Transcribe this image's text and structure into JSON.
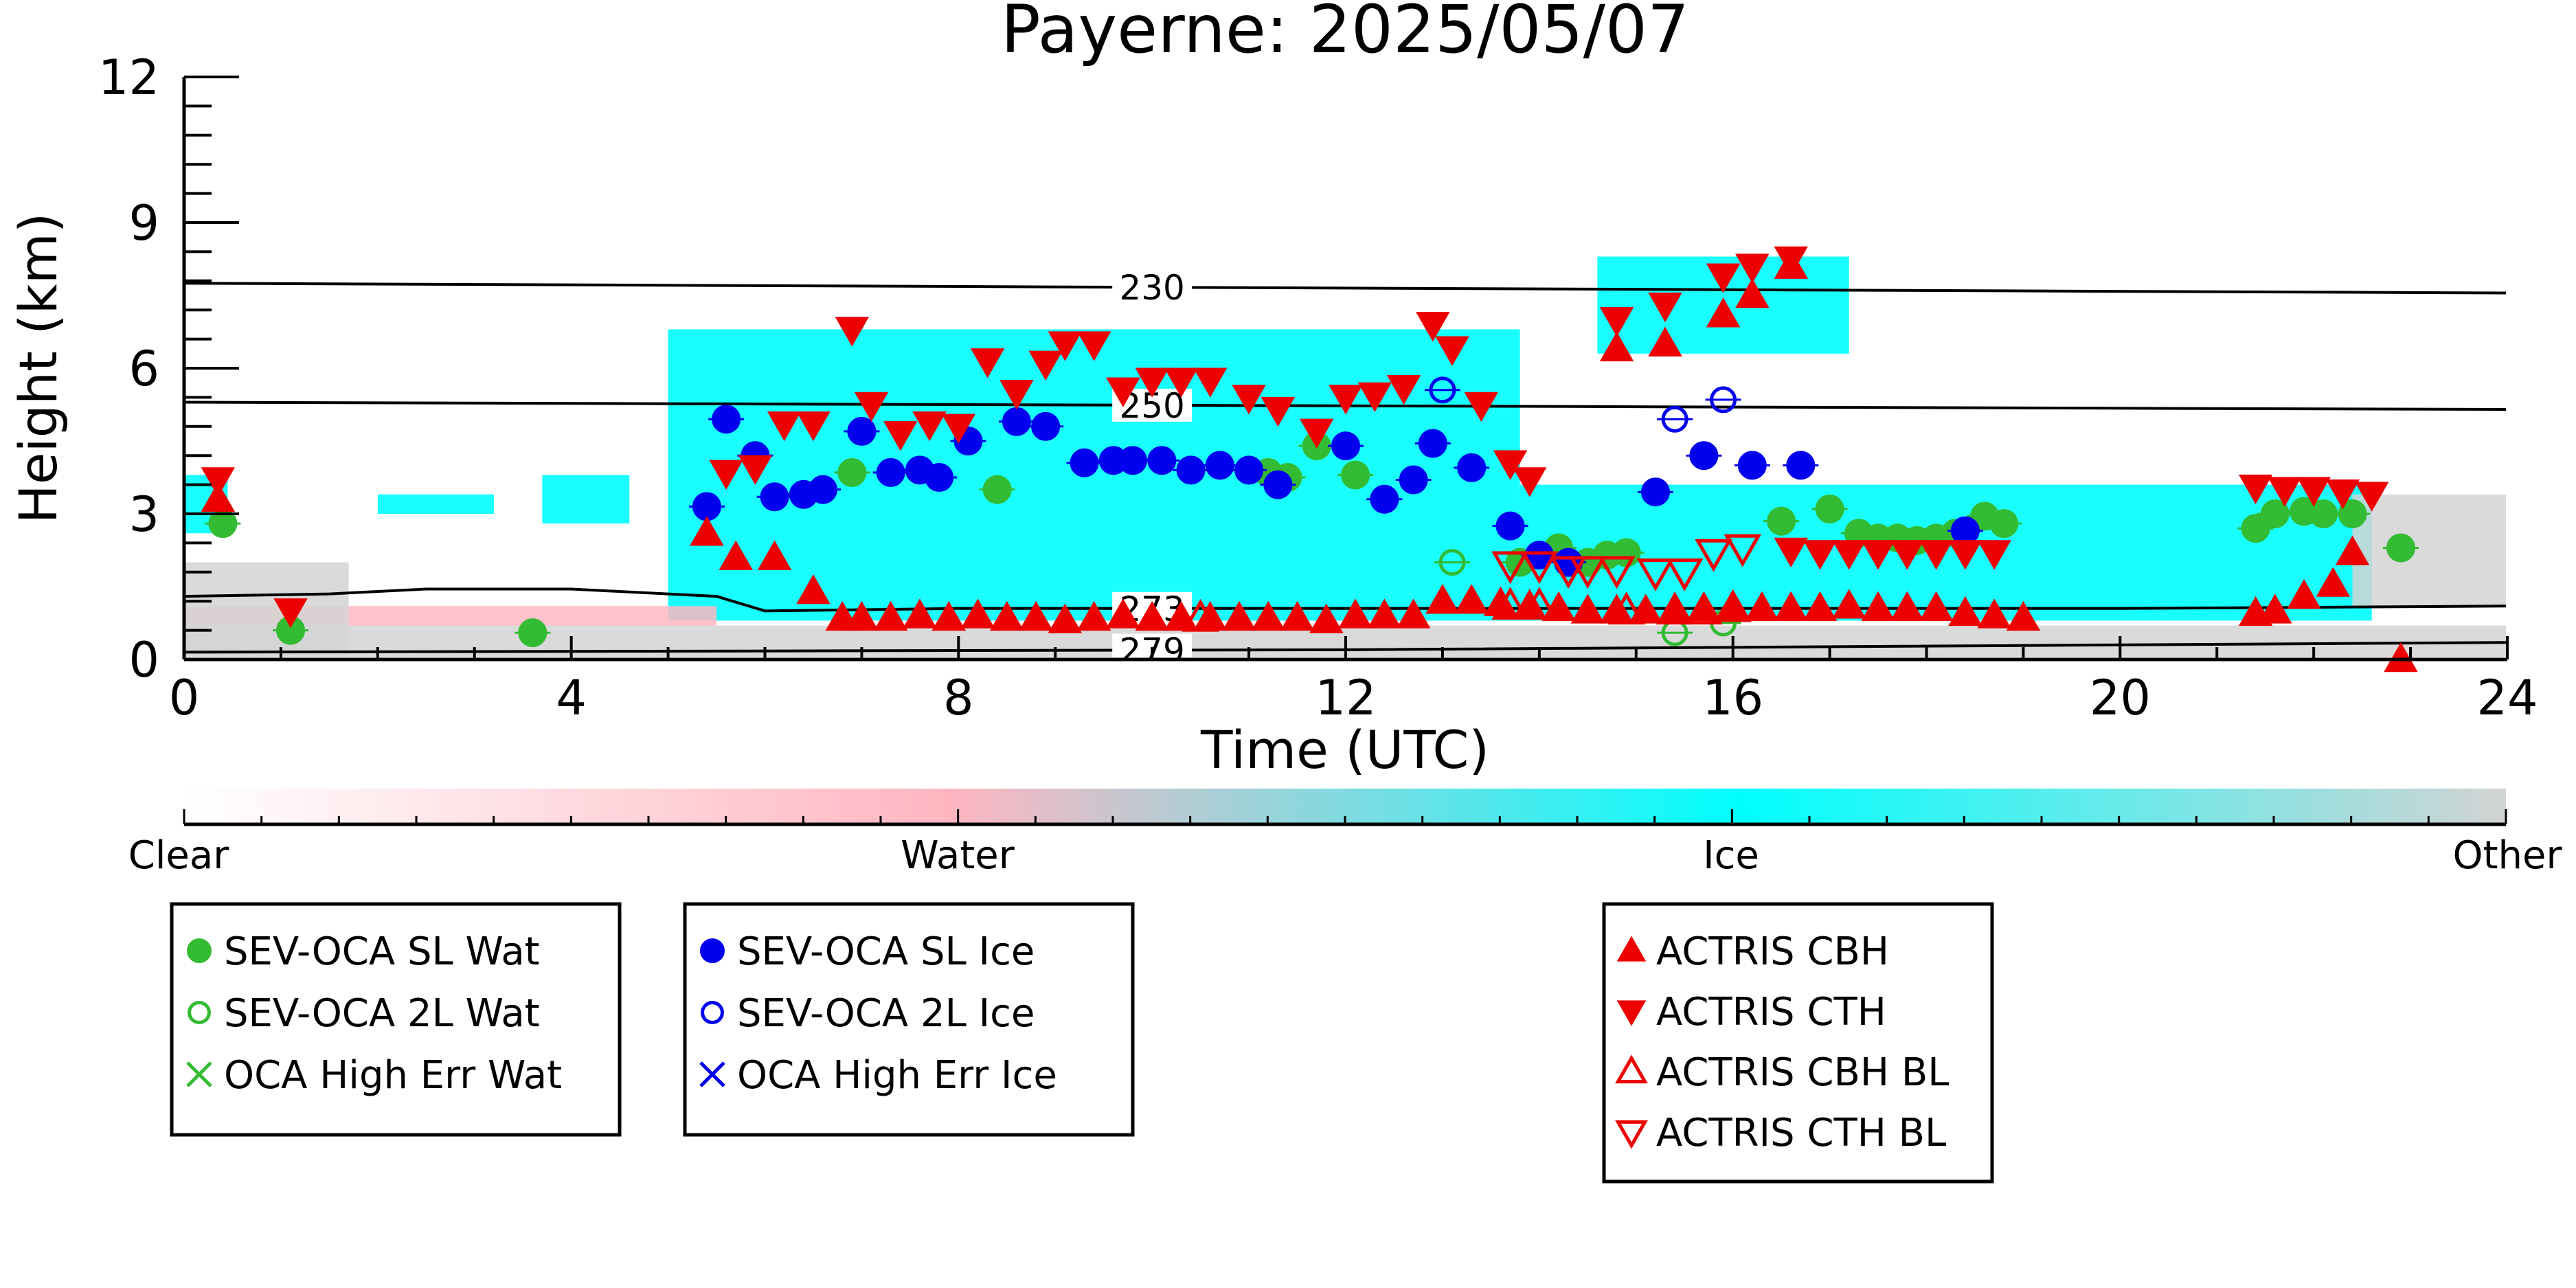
{
  "chart_data": {
    "type": "scatter",
    "title": "Payerne: 2025/05/07",
    "xlabel": "Time (UTC)",
    "ylabel": "Height (km)",
    "xlim": [
      0,
      24
    ],
    "ylim": [
      0,
      12
    ],
    "xticks": [
      0,
      4,
      8,
      12,
      16,
      20,
      24
    ],
    "yticks": [
      0,
      3,
      6,
      9,
      12
    ],
    "colorbar": {
      "labels": [
        "Clear",
        "Water",
        "Ice",
        "Other"
      ],
      "colors": {
        "clear": "#ffffff",
        "water": "#ffb6c1",
        "ice": "#00ffff",
        "other": "#d3d3d3"
      }
    },
    "isotherms": [
      {
        "label": "230",
        "points": [
          [
            0,
            7.75
          ],
          [
            24,
            7.55
          ]
        ]
      },
      {
        "label": "250",
        "points": [
          [
            0,
            5.3
          ],
          [
            24,
            5.15
          ]
        ]
      },
      {
        "label": "273",
        "points": [
          [
            0,
            1.3
          ],
          [
            1.5,
            1.35
          ],
          [
            2.5,
            1.45
          ],
          [
            4,
            1.45
          ],
          [
            5.5,
            1.3
          ],
          [
            6,
            1.0
          ],
          [
            8,
            1.05
          ],
          [
            12,
            1.05
          ],
          [
            16,
            1.05
          ],
          [
            20,
            1.05
          ],
          [
            24,
            1.1
          ]
        ]
      },
      {
        "label": "279",
        "points": [
          [
            0,
            0.15
          ],
          [
            12,
            0.2
          ],
          [
            24,
            0.35
          ]
        ]
      }
    ],
    "cloud_mask_regions": [
      {
        "phase": "ice",
        "x": [
          5.0,
          13.8
        ],
        "y": [
          0.8,
          6.8
        ]
      },
      {
        "phase": "ice",
        "x": [
          13.8,
          22.6
        ],
        "y": [
          0.8,
          3.6
        ]
      },
      {
        "phase": "ice",
        "x": [
          14.6,
          17.2
        ],
        "y": [
          6.3,
          8.3
        ]
      },
      {
        "phase": "ice",
        "x": [
          0,
          0.45
        ],
        "y": [
          2.6,
          3.8
        ]
      },
      {
        "phase": "ice",
        "x": [
          2.0,
          3.2
        ],
        "y": [
          3.0,
          3.4
        ]
      },
      {
        "phase": "ice",
        "x": [
          3.7,
          4.6
        ],
        "y": [
          2.8,
          3.8
        ]
      },
      {
        "phase": "water",
        "x": [
          0,
          5.5
        ],
        "y": [
          0.7,
          1.1
        ]
      },
      {
        "phase": "other",
        "x": [
          0,
          1.7
        ],
        "y": [
          0.1,
          2.0
        ]
      },
      {
        "phase": "other",
        "x": [
          0,
          24
        ],
        "y": [
          0.05,
          0.7
        ]
      },
      {
        "phase": "other",
        "x": [
          22.4,
          24
        ],
        "y": [
          1.1,
          3.4
        ]
      }
    ],
    "series": [
      {
        "name": "SEV-OCA SL Wat",
        "marker": "filled-circle",
        "color": "#33bb33",
        "x": [
          0.4,
          1.1,
          3.6,
          6.9,
          8.4,
          11.2,
          11.4,
          11.7,
          12.1,
          13.8,
          14.2,
          14.5,
          14.7,
          14.9,
          16.5,
          17.0,
          17.3,
          17.5,
          17.7,
          17.9,
          18.1,
          18.3,
          18.6,
          18.8,
          21.4,
          21.6,
          21.9,
          22.1,
          22.4,
          22.9
        ],
        "y": [
          2.8,
          0.6,
          0.55,
          3.85,
          3.5,
          3.85,
          3.75,
          4.4,
          3.8,
          2.0,
          2.3,
          2.0,
          2.15,
          2.2,
          2.85,
          3.1,
          2.6,
          2.5,
          2.5,
          2.45,
          2.5,
          2.6,
          2.95,
          2.8,
          2.7,
          3.0,
          3.05,
          3.0,
          3.0,
          2.3
        ]
      },
      {
        "name": "SEV-OCA 2L Wat",
        "marker": "open-circle",
        "color": "#33bb33",
        "x": [
          13.1,
          15.4,
          15.9
        ],
        "y": [
          2.0,
          0.55,
          0.75
        ]
      },
      {
        "name": "OCA High Err Wat",
        "marker": "x",
        "color": "#33bb33",
        "x": [],
        "y": []
      },
      {
        "name": "SEV-OCA SL Ice",
        "marker": "filled-circle",
        "color": "#0000ee",
        "x": [
          5.4,
          5.6,
          5.9,
          6.1,
          6.4,
          6.6,
          7.0,
          7.3,
          7.6,
          7.8,
          8.1,
          8.6,
          8.9,
          9.3,
          9.6,
          9.8,
          10.1,
          10.4,
          10.7,
          11.0,
          11.3,
          12.0,
          12.4,
          12.7,
          12.9,
          13.3,
          13.7,
          14.0,
          14.3,
          15.2,
          15.7,
          16.2,
          16.7,
          18.4
        ],
        "y": [
          3.15,
          4.95,
          4.2,
          3.35,
          3.4,
          3.5,
          4.7,
          3.85,
          3.9,
          3.75,
          4.5,
          4.9,
          4.8,
          4.05,
          4.1,
          4.1,
          4.1,
          3.9,
          4.0,
          3.9,
          3.6,
          4.4,
          3.3,
          3.7,
          4.45,
          3.95,
          2.75,
          2.15,
          2.0,
          3.45,
          4.2,
          4.0,
          4.0,
          2.65
        ]
      },
      {
        "name": "SEV-OCA 2L Ice",
        "marker": "open-circle",
        "color": "#0000ee",
        "x": [
          13.0,
          15.4,
          15.9
        ],
        "y": [
          5.55,
          4.95,
          5.35
        ]
      },
      {
        "name": "OCA High Err Ice",
        "marker": "x",
        "color": "#0000ee",
        "x": [],
        "y": []
      },
      {
        "name": "ACTRIS CBH",
        "marker": "filled-triangle-up",
        "color": "#ee0000",
        "x": [
          0.35,
          5.4,
          5.7,
          6.1,
          6.5,
          6.8,
          7.0,
          7.3,
          7.6,
          7.9,
          8.2,
          8.5,
          8.8,
          9.1,
          9.4,
          9.7,
          10.0,
          10.3,
          10.6,
          10.9,
          11.2,
          11.5,
          11.8,
          12.1,
          12.4,
          12.7,
          13.0,
          13.3,
          13.6,
          13.9,
          14.2,
          14.5,
          14.8,
          15.1,
          15.4,
          15.7,
          16.0,
          16.3,
          16.6,
          16.9,
          17.2,
          17.5,
          17.8,
          18.1,
          18.4,
          18.7,
          19.0,
          14.8,
          15.3,
          15.9,
          16.2,
          16.6,
          21.4,
          21.6,
          21.9,
          22.2,
          22.4,
          22.9
        ],
        "y": [
          3.3,
          2.6,
          2.1,
          2.1,
          1.4,
          0.85,
          0.85,
          0.85,
          0.9,
          0.85,
          0.9,
          0.85,
          0.85,
          0.8,
          0.85,
          0.9,
          0.85,
          0.85,
          0.85,
          0.85,
          0.85,
          0.85,
          0.8,
          0.9,
          0.9,
          0.9,
          1.2,
          1.2,
          1.15,
          1.1,
          1.05,
          1.0,
          1.0,
          1.0,
          1.0,
          1.05,
          1.05,
          1.05,
          1.05,
          1.05,
          1.1,
          1.05,
          1.05,
          1.05,
          0.95,
          0.9,
          0.85,
          6.4,
          6.5,
          7.1,
          7.5,
          8.1,
          0.95,
          1.0,
          1.3,
          1.55,
          2.2,
          0.0
        ]
      },
      {
        "name": "ACTRIS CTH",
        "marker": "filled-triangle-down",
        "color": "#ee0000",
        "x": [
          0.35,
          1.1,
          5.6,
          5.9,
          6.2,
          6.5,
          6.9,
          7.1,
          7.4,
          7.7,
          8.0,
          8.3,
          8.6,
          8.9,
          9.1,
          9.4,
          9.7,
          10.0,
          10.3,
          10.6,
          11.0,
          11.3,
          11.7,
          12.0,
          12.3,
          12.6,
          12.9,
          13.1,
          13.4,
          13.7,
          13.9,
          14.8,
          15.3,
          15.9,
          16.2,
          16.6,
          16.6,
          16.9,
          17.2,
          17.5,
          17.8,
          18.1,
          18.4,
          18.7,
          21.4,
          21.7,
          22.0,
          22.3,
          22.6
        ],
        "y": [
          3.7,
          1.0,
          3.85,
          3.95,
          4.85,
          4.85,
          6.8,
          5.25,
          4.65,
          4.85,
          4.8,
          6.15,
          5.5,
          6.1,
          6.5,
          6.5,
          5.55,
          5.75,
          5.75,
          5.75,
          5.4,
          5.15,
          4.7,
          5.4,
          5.45,
          5.6,
          6.9,
          6.4,
          5.25,
          4.05,
          3.7,
          7.0,
          7.3,
          7.9,
          8.1,
          8.25,
          2.25,
          2.2,
          2.2,
          2.2,
          2.2,
          2.2,
          2.2,
          2.2,
          3.55,
          3.5,
          3.5,
          3.45,
          3.4
        ]
      },
      {
        "name": "ACTRIS CBH BL",
        "marker": "open-triangle-up",
        "color": "#ee0000",
        "x": [
          10.5,
          13.7,
          14.0,
          14.9,
          15.4,
          15.7,
          16.0
        ],
        "y": [
          0.85,
          1.1,
          1.1,
          1.0,
          1.0,
          1.0,
          1.05
        ]
      },
      {
        "name": "ACTRIS CTH BL",
        "marker": "open-triangle-down",
        "color": "#ee0000",
        "x": [
          13.7,
          14.0,
          14.3,
          14.5,
          14.8,
          15.2,
          15.5,
          15.8,
          16.1
        ],
        "y": [
          1.95,
          1.95,
          1.85,
          1.85,
          1.85,
          1.8,
          1.8,
          2.2,
          2.3
        ]
      }
    ]
  }
}
